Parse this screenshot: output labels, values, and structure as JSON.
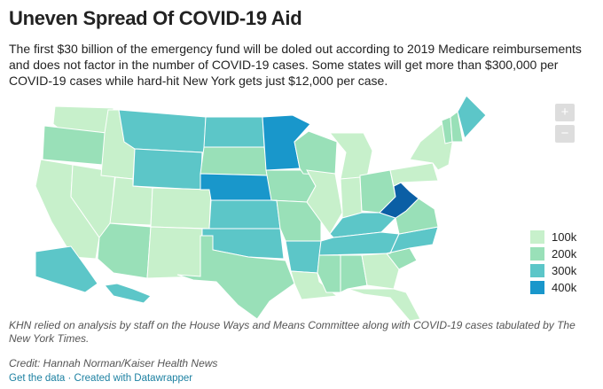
{
  "title": "Uneven Spread Of COVID-19 Aid",
  "description": "The first $30 billion of the emergency fund will be doled out according to 2019 Medicare reimbursements and does not factor in the number of COVID-19 cases. Some states will get more than $300,000 per COVID-19 cases while hard-hit New York gets just $12,000 per case.",
  "zoom": {
    "in": "+",
    "out": "−"
  },
  "legend": [
    {
      "label": "100k",
      "color": "#c7f0cb"
    },
    {
      "label": "200k",
      "color": "#99e0b8"
    },
    {
      "label": "300k",
      "color": "#5cc6c8"
    },
    {
      "label": "400k",
      "color": "#1997cb"
    }
  ],
  "top_color": "#0b5fa5",
  "states": [
    {
      "id": "WA",
      "bucket": 0
    },
    {
      "id": "OR",
      "bucket": 1
    },
    {
      "id": "CA",
      "bucket": 0
    },
    {
      "id": "NV",
      "bucket": 0
    },
    {
      "id": "ID",
      "bucket": 0
    },
    {
      "id": "MT",
      "bucket": 2
    },
    {
      "id": "WY",
      "bucket": 2
    },
    {
      "id": "UT",
      "bucket": 0
    },
    {
      "id": "CO",
      "bucket": 0
    },
    {
      "id": "AZ",
      "bucket": 1
    },
    {
      "id": "NM",
      "bucket": 0
    },
    {
      "id": "ND",
      "bucket": 2
    },
    {
      "id": "SD",
      "bucket": 1
    },
    {
      "id": "NE",
      "bucket": 3
    },
    {
      "id": "KS",
      "bucket": 2
    },
    {
      "id": "OK",
      "bucket": 2
    },
    {
      "id": "TX",
      "bucket": 1
    },
    {
      "id": "MN",
      "bucket": 3
    },
    {
      "id": "IA",
      "bucket": 1
    },
    {
      "id": "MO",
      "bucket": 1
    },
    {
      "id": "AR",
      "bucket": 2
    },
    {
      "id": "LA",
      "bucket": 0
    },
    {
      "id": "WI",
      "bucket": 1
    },
    {
      "id": "IL",
      "bucket": 0
    },
    {
      "id": "MI",
      "bucket": 0
    },
    {
      "id": "IN",
      "bucket": 0
    },
    {
      "id": "OH",
      "bucket": 1
    },
    {
      "id": "KY",
      "bucket": 2
    },
    {
      "id": "TN",
      "bucket": 2
    },
    {
      "id": "MS",
      "bucket": 1
    },
    {
      "id": "AL",
      "bucket": 1
    },
    {
      "id": "GA",
      "bucket": 0
    },
    {
      "id": "FL",
      "bucket": 0
    },
    {
      "id": "SC",
      "bucket": 1
    },
    {
      "id": "NC",
      "bucket": 2
    },
    {
      "id": "VA",
      "bucket": 1
    },
    {
      "id": "WV",
      "bucket": 4
    },
    {
      "id": "PA",
      "bucket": 0
    },
    {
      "id": "NY",
      "bucket": 0
    },
    {
      "id": "VT",
      "bucket": 1
    },
    {
      "id": "NH",
      "bucket": 1
    },
    {
      "id": "ME",
      "bucket": 2
    },
    {
      "id": "AK",
      "bucket": 2
    },
    {
      "id": "HI",
      "bucket": 2
    }
  ],
  "notes": "KHN relied on analysis by staff on the House Ways and Means Committee along with COVID-19 cases tabulated by The New York Times.",
  "credit": "Credit: Hannah Norman/Kaiser Health News",
  "links": {
    "data": "Get the data",
    "sep": " · ",
    "created": "Created with Datawrapper"
  }
}
